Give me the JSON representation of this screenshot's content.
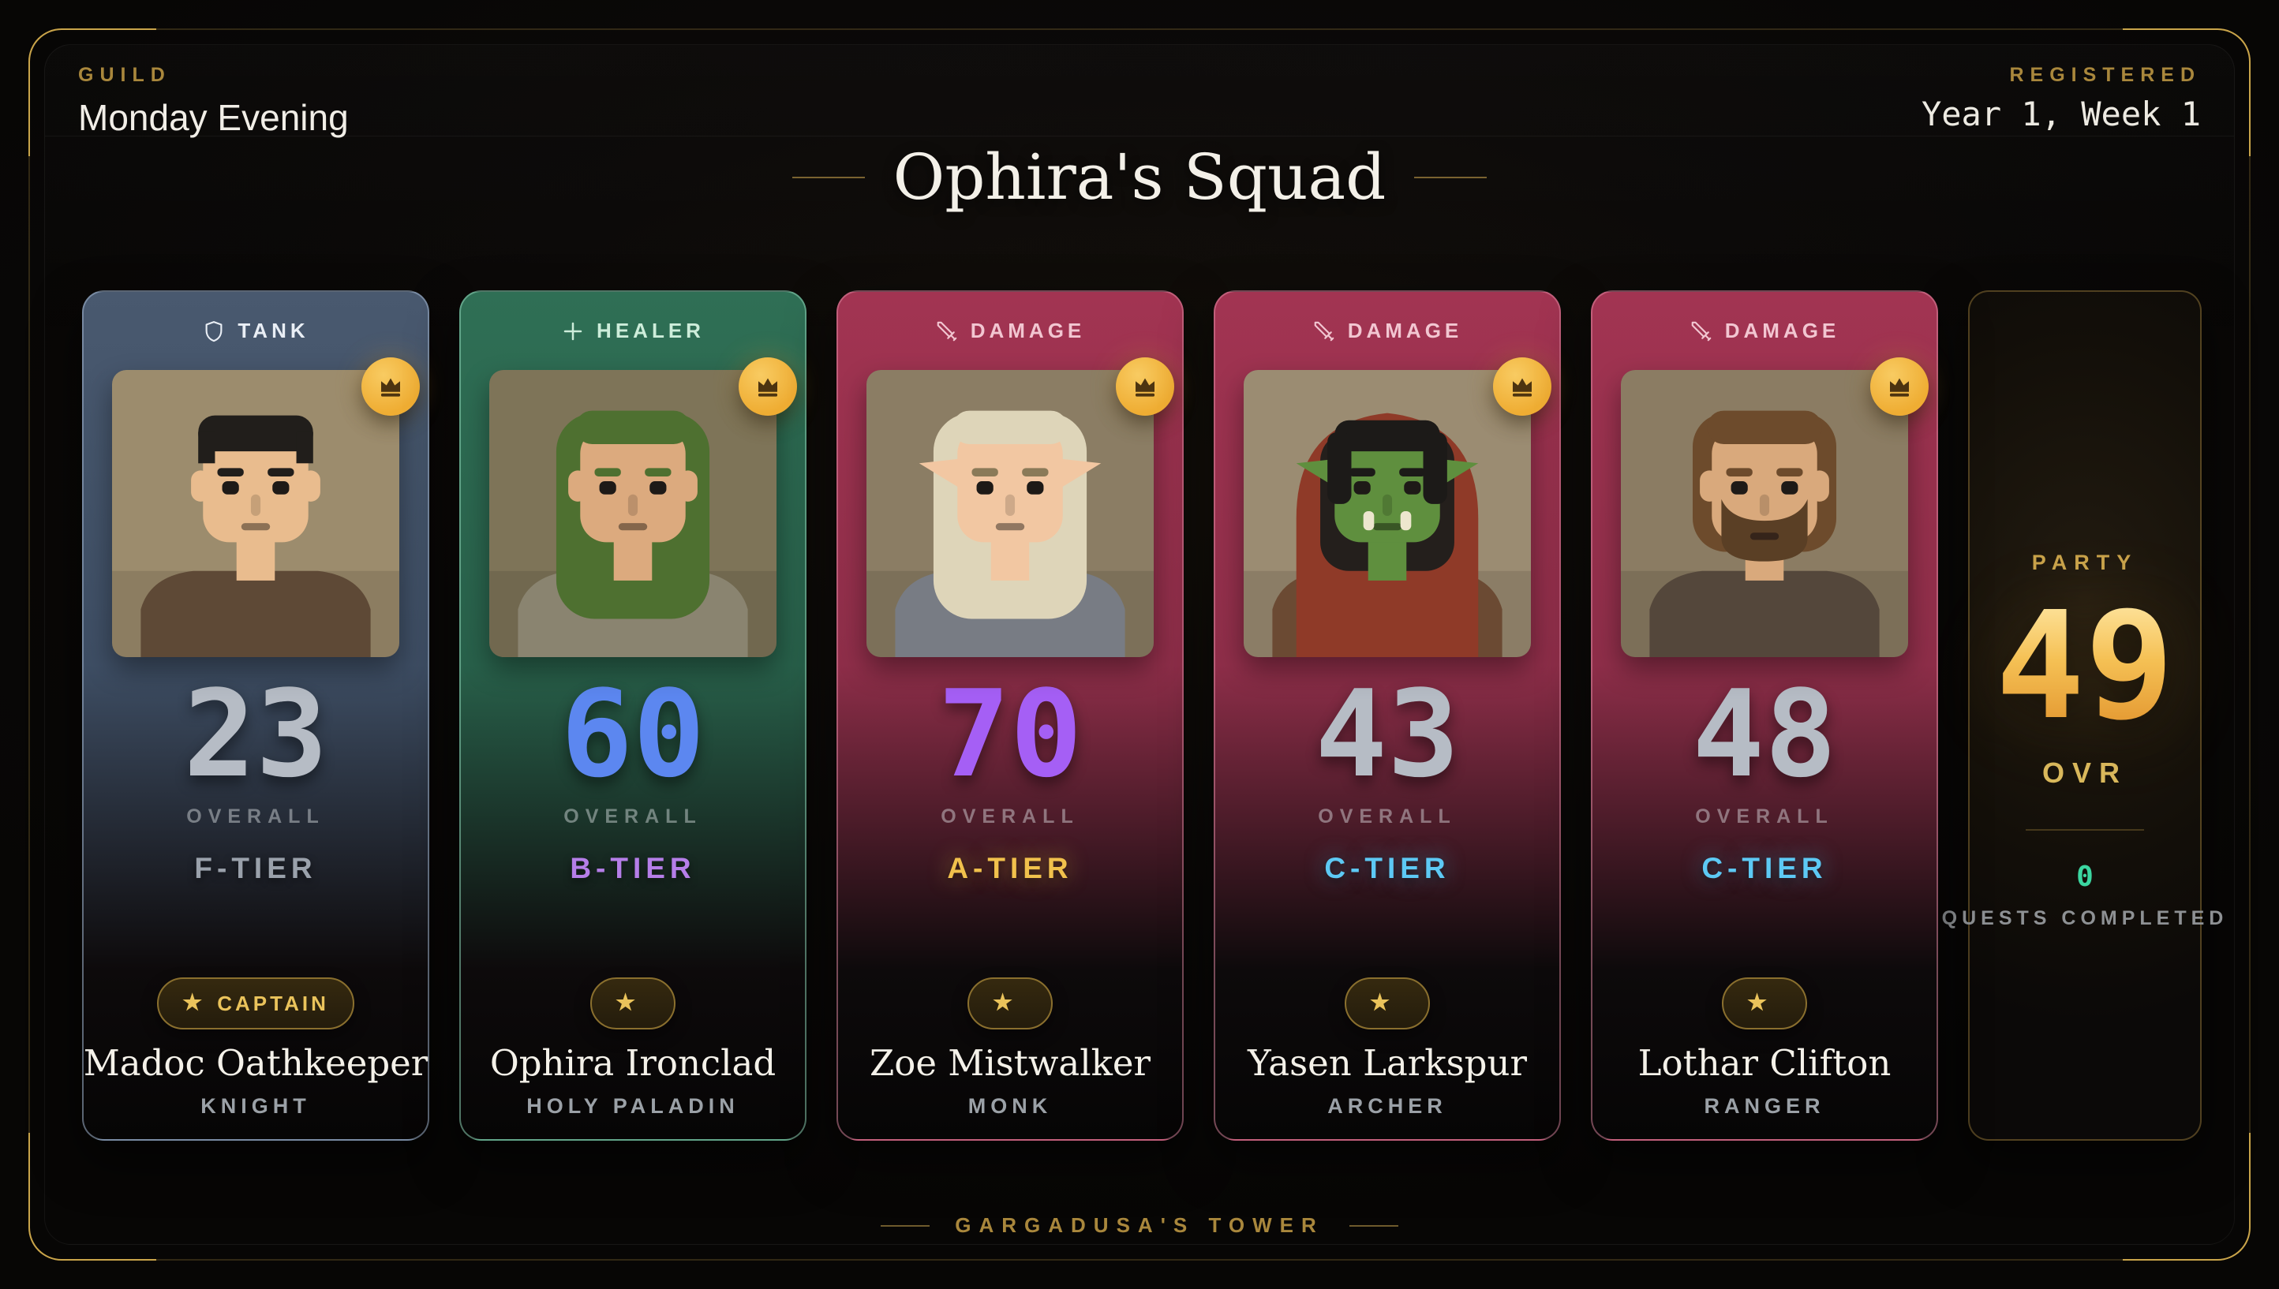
{
  "header": {
    "left_eyebrow": "GUILD",
    "left_title": "Monday Evening",
    "right_eyebrow": "REGISTERED",
    "right_title": "Year 1, Week 1"
  },
  "squad_title": "Ophira's Squad",
  "themes": {
    "tank": {
      "top": "#49596F",
      "mid": "#3E4E64",
      "border": "rgba(160,180,206,0.55)",
      "label_color": "#E9EEF5"
    },
    "healer": {
      "top": "#2F6F55",
      "mid": "#28604A",
      "border": "rgba(140,210,180,0.55)",
      "label_color": "#CDEDDA"
    },
    "damage": {
      "top": "#A23452",
      "mid": "#8E2E49",
      "border": "rgba(226,138,163,0.5)",
      "label_color": "#F2C6D1"
    }
  },
  "members": [
    {
      "role": "TANK",
      "role_icon": "shield-icon",
      "theme": "tank",
      "overall": "23",
      "overall_label": "OVERALL",
      "tier": "F-TIER",
      "tier_color": "#9AA1AB",
      "tier_glow": "rgba(0,0,0,0)",
      "number_color": "#B6BCC5",
      "is_captain": true,
      "has_crown": true,
      "captain_badge": "CAPTAIN",
      "name": "Madoc Oathkeeper",
      "class": "KNIGHT",
      "avatar": {
        "bg": "#9C8C6D",
        "skin": "#E9BC8E",
        "hair": "#211E1B",
        "style": "short",
        "outfit": "#5E4936",
        "ears": "round"
      }
    },
    {
      "role": "HEALER",
      "role_icon": "plus-icon",
      "theme": "healer",
      "overall": "60",
      "overall_label": "OVERALL",
      "tier": "B-TIER",
      "tier_color": "#B57EE8",
      "tier_glow": "rgba(0,0,0,0)",
      "number_color": "#5C87F0",
      "is_captain": false,
      "has_crown": false,
      "captain_badge": "",
      "name": "Ophira Ironclad",
      "class": "HOLY PALADIN",
      "avatar": {
        "bg": "#7E7458",
        "skin": "#DCAA7E",
        "hair": "#4E7030",
        "style": "long",
        "outfit": "#8A8470",
        "ears": "round"
      }
    },
    {
      "role": "DAMAGE",
      "role_icon": "sword-icon",
      "theme": "damage",
      "overall": "70",
      "overall_label": "OVERALL",
      "tier": "A-TIER",
      "tier_color": "#F1C14C",
      "tier_glow": "rgba(241,193,76,0.55)",
      "number_color": "#A55FF5",
      "is_captain": false,
      "has_crown": false,
      "captain_badge": "",
      "name": "Zoe Mistwalker",
      "class": "MONK",
      "avatar": {
        "bg": "#8B7D64",
        "skin": "#F2C7A2",
        "hair": "#DED5B9",
        "style": "long",
        "outfit": "#787C84",
        "ears": "pointed"
      }
    },
    {
      "role": "DAMAGE",
      "role_icon": "sword-icon",
      "theme": "damage",
      "overall": "43",
      "overall_label": "OVERALL",
      "tier": "C-TIER",
      "tier_color": "#5DC9F4",
      "tier_glow": "rgba(93,201,244,0.5)",
      "number_color": "#B6BCC5",
      "is_captain": false,
      "has_crown": false,
      "captain_badge": "",
      "name": "Yasen Larkspur",
      "class": "ARCHER",
      "avatar": {
        "bg": "#9B8C72",
        "skin": "#5F8F3E",
        "hair": "#1C1A18",
        "style": "hood",
        "hood": "#8F3A28",
        "outfit": "#6B4A33",
        "ears": "pointed",
        "tusks": true
      }
    },
    {
      "role": "DAMAGE",
      "role_icon": "sword-icon",
      "theme": "damage",
      "overall": "48",
      "overall_label": "OVERALL",
      "tier": "C-TIER",
      "tier_color": "#5DC9F4",
      "tier_glow": "rgba(93,201,244,0.5)",
      "number_color": "#B6BCC5",
      "is_captain": false,
      "has_crown": false,
      "captain_badge": "",
      "name": "Lothar Clifton",
      "class": "RANGER",
      "avatar": {
        "bg": "#8B7C63",
        "skin": "#D9A97C",
        "hair": "#6D4B2C",
        "style": "medium",
        "beard": "#5A3F25",
        "outfit": "#54473B",
        "ears": "round"
      }
    }
  ],
  "party": {
    "label": "PARTY",
    "overall": "49",
    "ovr_label": "OVR",
    "quests_value": "0",
    "quests_label": "QUESTS COMPLETED"
  },
  "footer": {
    "location": "GARGADUSA'S TOWER"
  },
  "colors": {
    "gold_accent": "#C2A14C",
    "gold_dim": "#8A713A",
    "crown_badge_bg": "#F2B441",
    "captain_text": "#EAC35B",
    "party_number_top": "#FFE9A8",
    "party_number_bottom": "#E0902A",
    "quests_value_teal": "#3BD6A0"
  }
}
